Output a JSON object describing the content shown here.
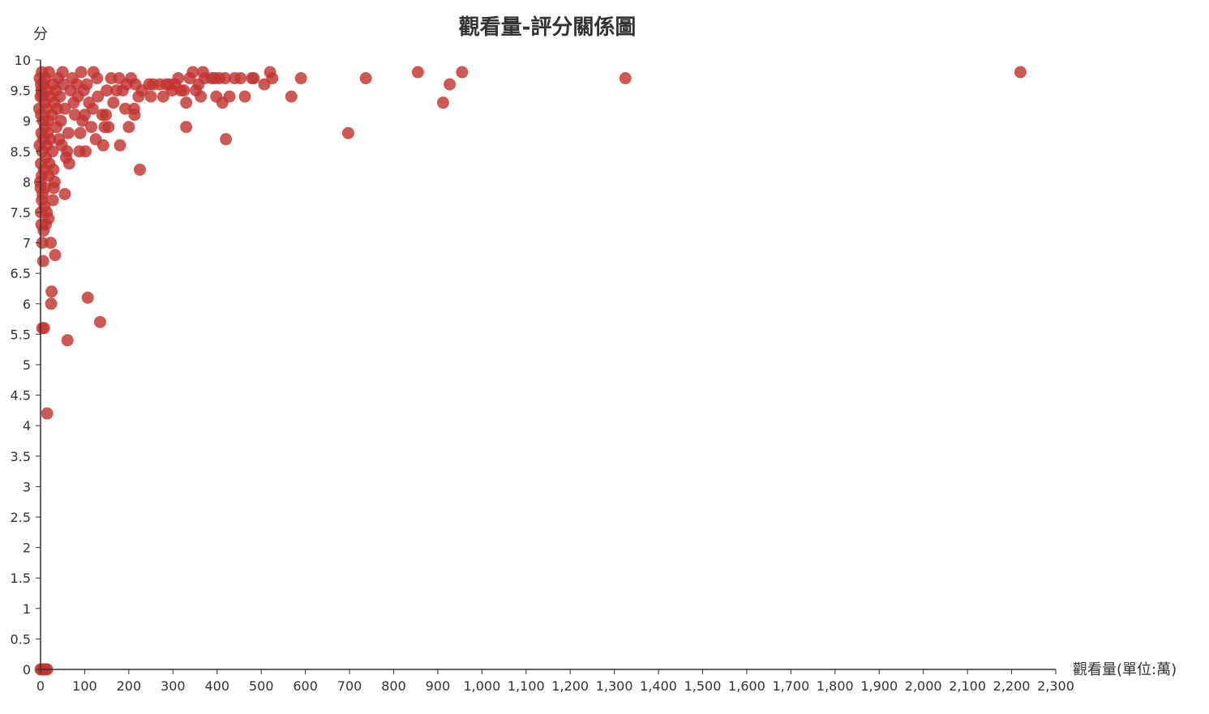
{
  "chart_data": {
    "type": "scatter",
    "title": "觀看量-評分關係圖",
    "xlabel": "觀看量(單位:萬)",
    "ylabel": "分",
    "xlim": [
      0,
      2300
    ],
    "ylim": [
      0,
      10
    ],
    "x_ticks": [
      "0",
      "100",
      "200",
      "300",
      "400",
      "500",
      "600",
      "700",
      "800",
      "900",
      "1,000",
      "1,100",
      "1,200",
      "1,300",
      "1,400",
      "1,500",
      "1,600",
      "1,700",
      "1,800",
      "1,900",
      "2,000",
      "2,100",
      "2,200",
      "2,300"
    ],
    "y_ticks": [
      "0",
      "0.5",
      "1",
      "1.5",
      "2",
      "2.5",
      "3",
      "3.5",
      "4",
      "4.5",
      "5",
      "5.5",
      "6",
      "6.5",
      "7",
      "7.5",
      "8",
      "8.5",
      "9",
      "9.5",
      "10"
    ],
    "grid": false,
    "point_color": "#c23531",
    "series": [
      {
        "points": [
          [
            2220,
            9.8
          ],
          [
            1325,
            9.7
          ],
          [
            955,
            9.8
          ],
          [
            927,
            9.6
          ],
          [
            912,
            9.3
          ],
          [
            855,
            9.8
          ],
          [
            737,
            9.7
          ],
          [
            697,
            8.8
          ],
          [
            590,
            9.7
          ],
          [
            568,
            9.4
          ],
          [
            525,
            9.7
          ],
          [
            520,
            9.8
          ],
          [
            507,
            9.6
          ],
          [
            483,
            9.7
          ],
          [
            479,
            9.7
          ],
          [
            463,
            9.4
          ],
          [
            453,
            9.7
          ],
          [
            440,
            9.7
          ],
          [
            428,
            9.4
          ],
          [
            420,
            8.7
          ],
          [
            418,
            9.7
          ],
          [
            412,
            9.3
          ],
          [
            405,
            9.7
          ],
          [
            398,
            9.4
          ],
          [
            395,
            9.7
          ],
          [
            388,
            9.7
          ],
          [
            372,
            9.7
          ],
          [
            368,
            9.8
          ],
          [
            363,
            9.4
          ],
          [
            358,
            9.6
          ],
          [
            352,
            9.5
          ],
          [
            345,
            9.8
          ],
          [
            338,
            9.7
          ],
          [
            330,
            8.9
          ],
          [
            330,
            9.3
          ],
          [
            325,
            9.5
          ],
          [
            318,
            9.5
          ],
          [
            312,
            9.7
          ],
          [
            305,
            9.6
          ],
          [
            298,
            9.5
          ],
          [
            292,
            9.6
          ],
          [
            285,
            9.6
          ],
          [
            278,
            9.4
          ],
          [
            270,
            9.6
          ],
          [
            255,
            9.6
          ],
          [
            250,
            9.4
          ],
          [
            246,
            9.6
          ],
          [
            230,
            9.5
          ],
          [
            225,
            8.2
          ],
          [
            222,
            9.4
          ],
          [
            215,
            9.6
          ],
          [
            213,
            9.1
          ],
          [
            212,
            9.2
          ],
          [
            205,
            9.7
          ],
          [
            200,
            8.9
          ],
          [
            195,
            9.6
          ],
          [
            192,
            9.2
          ],
          [
            186,
            9.5
          ],
          [
            180,
            8.6
          ],
          [
            178,
            9.7
          ],
          [
            172,
            9.5
          ],
          [
            165,
            9.3
          ],
          [
            160,
            9.7
          ],
          [
            154,
            8.9
          ],
          [
            150,
            9.5
          ],
          [
            148,
            9.1
          ],
          [
            145,
            8.9
          ],
          [
            142,
            8.6
          ],
          [
            140,
            9.1
          ],
          [
            135,
            5.7
          ],
          [
            130,
            9.4
          ],
          [
            128,
            9.7
          ],
          [
            125,
            8.7
          ],
          [
            120,
            9.8
          ],
          [
            118,
            9.2
          ],
          [
            115,
            8.9
          ],
          [
            110,
            9.3
          ],
          [
            107,
            6.1
          ],
          [
            105,
            9.6
          ],
          [
            102,
            8.5
          ],
          [
            100,
            9.1
          ],
          [
            98,
            9.5
          ],
          [
            95,
            9.0
          ],
          [
            92,
            9.8
          ],
          [
            90,
            8.8
          ],
          [
            88,
            8.5
          ],
          [
            85,
            9.4
          ],
          [
            82,
            9.6
          ],
          [
            78,
            9.1
          ],
          [
            75,
            9.3
          ],
          [
            72,
            9.7
          ],
          [
            68,
            9.5
          ],
          [
            65,
            8.3
          ],
          [
            63,
            8.8
          ],
          [
            61,
            5.4
          ],
          [
            60,
            8.5
          ],
          [
            58,
            8.4
          ],
          [
            55,
            7.8
          ],
          [
            55,
            9.2
          ],
          [
            52,
            9.6
          ],
          [
            50,
            9.8
          ],
          [
            48,
            8.6
          ],
          [
            46,
            9.0
          ],
          [
            44,
            9.4
          ],
          [
            42,
            8.7
          ],
          [
            40,
            9.7
          ],
          [
            38,
            9.2
          ],
          [
            36,
            8.9
          ],
          [
            35,
            9.5
          ],
          [
            33,
            6.8
          ],
          [
            32,
            8.0
          ],
          [
            31,
            9.3
          ],
          [
            30,
            7.9
          ],
          [
            29,
            8.2
          ],
          [
            28,
            9.6
          ],
          [
            28,
            7.7
          ],
          [
            27,
            8.5
          ],
          [
            26,
            9.1
          ],
          [
            25,
            6.2
          ],
          [
            24,
            6.0
          ],
          [
            23,
            7.0
          ],
          [
            22,
            8.7
          ],
          [
            21,
            9.4
          ],
          [
            20,
            8.3
          ],
          [
            19,
            9.8
          ],
          [
            18,
            7.4
          ],
          [
            18,
            8.1
          ],
          [
            17,
            9.0
          ],
          [
            16,
            8.8
          ],
          [
            15,
            4.2
          ],
          [
            15,
            9.5
          ],
          [
            14,
            7.5
          ],
          [
            14,
            8.6
          ],
          [
            13,
            9.2
          ],
          [
            12,
            7.3
          ],
          [
            12,
            8.4
          ],
          [
            11,
            9.7
          ],
          [
            10,
            7.9
          ],
          [
            10,
            8.9
          ],
          [
            9,
            7.6
          ],
          [
            9,
            9.3
          ],
          [
            8,
            5.6
          ],
          [
            8,
            8.2
          ],
          [
            7,
            9.6
          ],
          [
            7,
            7.2
          ],
          [
            6,
            8.7
          ],
          [
            6,
            6.7
          ],
          [
            6,
            9.0
          ],
          [
            5,
            7.8
          ],
          [
            5,
            9.4
          ],
          [
            4,
            7.0
          ],
          [
            4,
            8.5
          ],
          [
            4,
            5.6
          ],
          [
            3,
            9.8
          ],
          [
            3,
            8.1
          ],
          [
            3,
            7.7
          ],
          [
            2,
            9.5
          ],
          [
            2,
            8.8
          ],
          [
            2,
            7.3
          ],
          [
            1,
            9.1
          ],
          [
            1,
            8.3
          ],
          [
            1,
            7.5
          ],
          [
            1,
            9.6
          ],
          [
            0,
            0
          ],
          [
            3,
            0
          ],
          [
            5,
            0
          ],
          [
            8,
            0
          ],
          [
            12,
            0
          ],
          [
            15,
            0
          ],
          [
            -3,
            9.2
          ],
          [
            -2,
            8.6
          ],
          [
            -2,
            9.7
          ],
          [
            -1,
            8.0
          ],
          [
            0,
            7.9
          ],
          [
            0,
            9.4
          ]
        ]
      }
    ]
  }
}
